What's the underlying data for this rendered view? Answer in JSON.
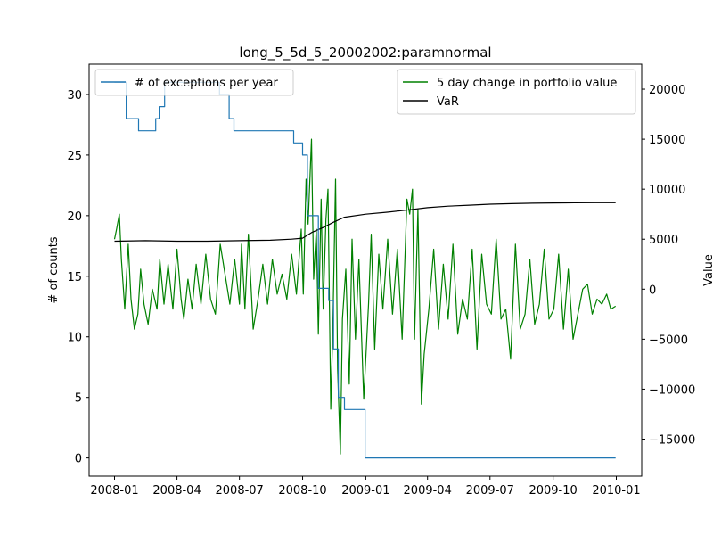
{
  "chart_data": {
    "type": "line",
    "title": "long_5_5d_5_20002002:paramnormal",
    "left_axis": {
      "label": "# of counts",
      "ylim": [
        -1.5,
        32.5
      ],
      "ticks": [
        0,
        5,
        10,
        15,
        20,
        25,
        30
      ],
      "tick_labels": [
        "0",
        "5",
        "10",
        "15",
        "20",
        "25",
        "30"
      ]
    },
    "right_axis": {
      "label": "Value",
      "ylim": [
        -18700,
        22500
      ],
      "ticks": [
        -15000,
        -10000,
        -5000,
        0,
        5000,
        10000,
        15000,
        20000
      ],
      "tick_labels": [
        "−15000",
        "−10000",
        "−5000",
        "0",
        "5000",
        "10000",
        "15000",
        "20000"
      ]
    },
    "x_axis": {
      "range": [
        "2007-11-25",
        "2010-02-07"
      ],
      "ticks": [
        "2008-01-01",
        "2008-04-01",
        "2008-07-01",
        "2008-10-01",
        "2009-01-01",
        "2009-04-01",
        "2009-07-01",
        "2009-10-01",
        "2010-01-01"
      ],
      "tick_labels": [
        "2008-01",
        "2008-04",
        "2008-07",
        "2008-10",
        "2009-01",
        "2009-04",
        "2009-07",
        "2009-10",
        "2010-01"
      ]
    },
    "legend_left": {
      "placement": "upper-left",
      "entries": [
        {
          "label": "# of exceptions per year",
          "color": "#1f77b4"
        }
      ]
    },
    "legend_right": {
      "placement": "upper-right",
      "entries": [
        {
          "label": "5 day change in portfolio value",
          "color": "#008000"
        },
        {
          "label": "VaR",
          "color": "#000000"
        }
      ]
    },
    "series": [
      {
        "name": "# of exceptions per year",
        "axis": "left",
        "color": "#1f77b4",
        "step": true,
        "x": [
          "2008-01-01",
          "2008-01-18",
          "2008-02-05",
          "2008-03-01",
          "2008-03-06",
          "2008-03-14",
          "2008-06-02",
          "2008-06-16",
          "2008-06-23",
          "2008-09-18",
          "2008-10-01",
          "2008-10-08",
          "2008-10-24",
          "2008-11-08",
          "2008-11-15",
          "2008-11-22",
          "2008-12-01",
          "2008-12-31",
          "2009-12-31"
        ],
        "values": [
          31,
          28,
          27,
          28,
          29,
          31,
          30,
          28,
          27,
          26,
          25,
          20,
          14,
          13,
          9,
          5,
          4,
          0,
          0
        ]
      },
      {
        "name": "5 day change in portfolio value",
        "axis": "right",
        "color": "#008000",
        "x": [
          "2008-01-01",
          "2008-01-04",
          "2008-01-08",
          "2008-01-11",
          "2008-01-16",
          "2008-01-21",
          "2008-01-25",
          "2008-01-30",
          "2008-02-04",
          "2008-02-08",
          "2008-02-13",
          "2008-02-19",
          "2008-02-25",
          "2008-03-03",
          "2008-03-07",
          "2008-03-13",
          "2008-03-19",
          "2008-03-26",
          "2008-04-01",
          "2008-04-07",
          "2008-04-11",
          "2008-04-17",
          "2008-04-23",
          "2008-04-29",
          "2008-05-06",
          "2008-05-13",
          "2008-05-20",
          "2008-05-27",
          "2008-06-03",
          "2008-06-10",
          "2008-06-17",
          "2008-06-24",
          "2008-07-01",
          "2008-07-04",
          "2008-07-09",
          "2008-07-14",
          "2008-07-21",
          "2008-07-28",
          "2008-08-04",
          "2008-08-11",
          "2008-08-18",
          "2008-08-25",
          "2008-09-01",
          "2008-09-08",
          "2008-09-15",
          "2008-09-22",
          "2008-09-29",
          "2008-10-02",
          "2008-10-06",
          "2008-10-09",
          "2008-10-14",
          "2008-10-17",
          "2008-10-21",
          "2008-10-24",
          "2008-10-28",
          "2008-10-31",
          "2008-11-04",
          "2008-11-07",
          "2008-11-11",
          "2008-11-14",
          "2008-11-18",
          "2008-11-21",
          "2008-11-25",
          "2008-11-28",
          "2008-12-03",
          "2008-12-08",
          "2008-12-12",
          "2008-12-17",
          "2008-12-22",
          "2008-12-29",
          "2009-01-05",
          "2009-01-09",
          "2009-01-14",
          "2009-01-20",
          "2009-01-26",
          "2009-02-02",
          "2009-02-09",
          "2009-02-16",
          "2009-02-23",
          "2009-03-02",
          "2009-03-06",
          "2009-03-10",
          "2009-03-13",
          "2009-03-18",
          "2009-03-23",
          "2009-03-27",
          "2009-04-03",
          "2009-04-10",
          "2009-04-17",
          "2009-04-24",
          "2009-05-01",
          "2009-05-08",
          "2009-05-15",
          "2009-05-22",
          "2009-05-29",
          "2009-06-05",
          "2009-06-12",
          "2009-06-19",
          "2009-06-26",
          "2009-07-03",
          "2009-07-10",
          "2009-07-17",
          "2009-07-24",
          "2009-07-31",
          "2009-08-07",
          "2009-08-14",
          "2009-08-21",
          "2009-08-28",
          "2009-09-04",
          "2009-09-11",
          "2009-09-18",
          "2009-09-25",
          "2009-10-02",
          "2009-10-09",
          "2009-10-16",
          "2009-10-23",
          "2009-10-30",
          "2009-11-06",
          "2009-11-13",
          "2009-11-20",
          "2009-11-27",
          "2009-12-04",
          "2009-12-11",
          "2009-12-18",
          "2009-12-24",
          "2009-12-31"
        ],
        "values": [
          5000,
          6000,
          7500,
          3000,
          -2000,
          4500,
          -1000,
          -4000,
          -2500,
          2000,
          -1500,
          -3500,
          0,
          -2000,
          3000,
          -1500,
          2500,
          -2000,
          4000,
          -1000,
          -3000,
          1000,
          -2000,
          2500,
          -1500,
          3500,
          -1000,
          -2500,
          4500,
          1500,
          -1500,
          3000,
          -1500,
          4500,
          -2000,
          5500,
          -4000,
          -1000,
          2500,
          -1500,
          3000,
          -500,
          1500,
          -1000,
          3500,
          -500,
          6000,
          -500,
          11000,
          6500,
          15000,
          1000,
          6000,
          -4500,
          9000,
          -2000,
          7000,
          10000,
          -12000,
          -4000,
          11000,
          -8000,
          -16500,
          -3000,
          2000,
          -9500,
          5000,
          -5000,
          3000,
          -11000,
          -1500,
          5500,
          -6000,
          3500,
          -2000,
          5000,
          -2500,
          4000,
          -5000,
          9000,
          7500,
          10000,
          -5000,
          8000,
          -11500,
          -6500,
          -2000,
          4000,
          -4000,
          2500,
          -3000,
          4500,
          -4500,
          -1000,
          -3000,
          4000,
          -6000,
          3500,
          -1500,
          -2500,
          5000,
          -3000,
          -2000,
          -7000,
          4500,
          -4000,
          -2500,
          3000,
          -3500,
          -1500,
          4000,
          -3000,
          -2000,
          3500,
          -4000,
          2000,
          -5000,
          -2500,
          0,
          500,
          -2500,
          -1000,
          -1500,
          -500,
          -2000,
          -1700
        ]
      },
      {
        "name": "VaR",
        "axis": "right",
        "color": "#000000",
        "x": [
          "2008-01-01",
          "2008-02-15",
          "2008-04-01",
          "2008-05-15",
          "2008-07-01",
          "2008-08-15",
          "2008-09-15",
          "2008-10-01",
          "2008-10-15",
          "2008-11-01",
          "2008-11-15",
          "2008-12-01",
          "2009-01-01",
          "2009-02-01",
          "2009-03-01",
          "2009-04-01",
          "2009-05-01",
          "2009-06-01",
          "2009-07-01",
          "2009-08-01",
          "2009-09-01",
          "2009-10-01",
          "2009-11-01",
          "2009-12-01",
          "2009-12-31"
        ],
        "values": [
          4800,
          4850,
          4800,
          4800,
          4850,
          4900,
          5000,
          5100,
          5700,
          6200,
          6700,
          7200,
          7500,
          7700,
          7900,
          8150,
          8300,
          8400,
          8500,
          8550,
          8600,
          8620,
          8640,
          8650,
          8650
        ]
      }
    ]
  }
}
